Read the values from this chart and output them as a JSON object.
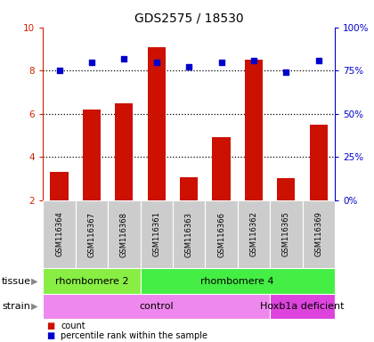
{
  "title": "GDS2575 / 18530",
  "samples": [
    "GSM116364",
    "GSM116367",
    "GSM116368",
    "GSM116361",
    "GSM116363",
    "GSM116366",
    "GSM116362",
    "GSM116365",
    "GSM116369"
  ],
  "counts": [
    3.3,
    6.2,
    6.5,
    9.1,
    3.05,
    4.9,
    8.5,
    3.0,
    5.5
  ],
  "percentile_ranks": [
    75,
    80,
    82,
    80,
    77,
    80,
    81,
    74,
    81
  ],
  "bar_color": "#cc1100",
  "dot_color": "#0000cc",
  "ylim_left": [
    2,
    10
  ],
  "ylim_right": [
    0,
    100
  ],
  "yticks_left": [
    2,
    4,
    6,
    8,
    10
  ],
  "yticks_right": [
    0,
    25,
    50,
    75,
    100
  ],
  "ytick_labels_right": [
    "0%",
    "25%",
    "50%",
    "75%",
    "100%"
  ],
  "tissue_groups": [
    {
      "label": "rhombomere 2",
      "start": 0,
      "end": 3,
      "color": "#88ee44"
    },
    {
      "label": "rhombomere 4",
      "start": 3,
      "end": 9,
      "color": "#44ee44"
    }
  ],
  "strain_groups": [
    {
      "label": "control",
      "start": 0,
      "end": 7,
      "color": "#ee88ee"
    },
    {
      "label": "Hoxb1a deficient",
      "start": 7,
      "end": 9,
      "color": "#dd44dd"
    }
  ],
  "legend_count_label": "count",
  "legend_pct_label": "percentile rank within the sample",
  "axis_label_left_color": "#cc2200",
  "axis_label_right_color": "#0000cc",
  "bg_plot": "#ffffff",
  "bg_label": "#cccccc",
  "tissue_row_label": "tissue",
  "strain_row_label": "strain"
}
